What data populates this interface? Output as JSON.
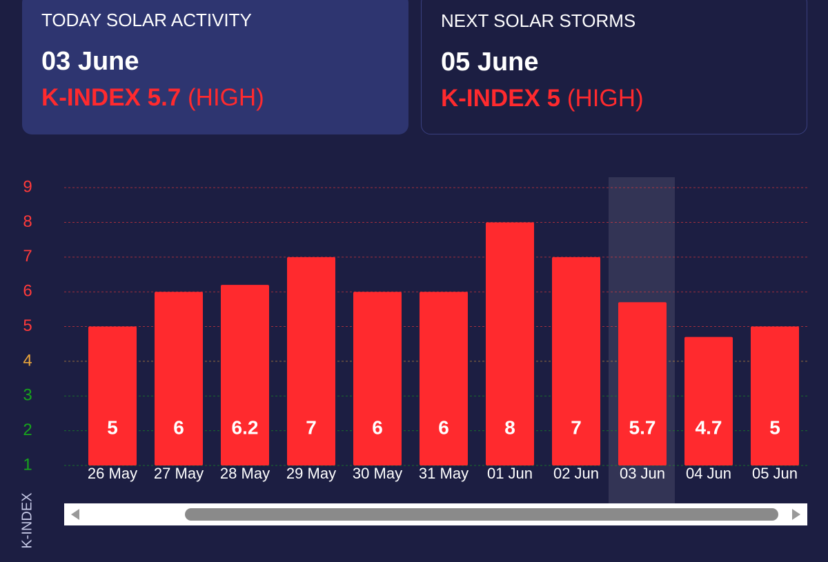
{
  "cards": [
    {
      "heading": "TODAY SOLAR ACTIVITY",
      "date": "03 June",
      "k_index": "K-INDEX 5.7",
      "level": "(HIGH)"
    },
    {
      "heading": "NEXT SOLAR STORMS",
      "date": "05 June",
      "k_index": "K-INDEX 5",
      "level": "(HIGH)"
    }
  ],
  "chart_data": {
    "type": "bar",
    "y_label": "K-INDEX",
    "categories": [
      "26 May",
      "27 May",
      "28 May",
      "29 May",
      "30 May",
      "31 May",
      "01 Jun",
      "02 Jun",
      "03 Jun",
      "04 Jun",
      "05 Jun"
    ],
    "values": [
      5,
      6,
      6.2,
      7,
      6,
      6,
      8,
      7,
      5.7,
      4.7,
      5
    ],
    "color": "#ff2a2e",
    "ylim": [
      1,
      9.3
    ],
    "yticks": [
      1,
      2,
      3,
      4,
      5,
      6,
      7,
      8,
      9
    ],
    "ytick_colors": [
      "#17a51c",
      "#17a51c",
      "#17a51c",
      "#e9a53a",
      "#ff3a3a",
      "#ff3a3a",
      "#ff3a3a",
      "#ff3a3a",
      "#ff3a3a"
    ],
    "grid": true,
    "highlight": 8
  }
}
